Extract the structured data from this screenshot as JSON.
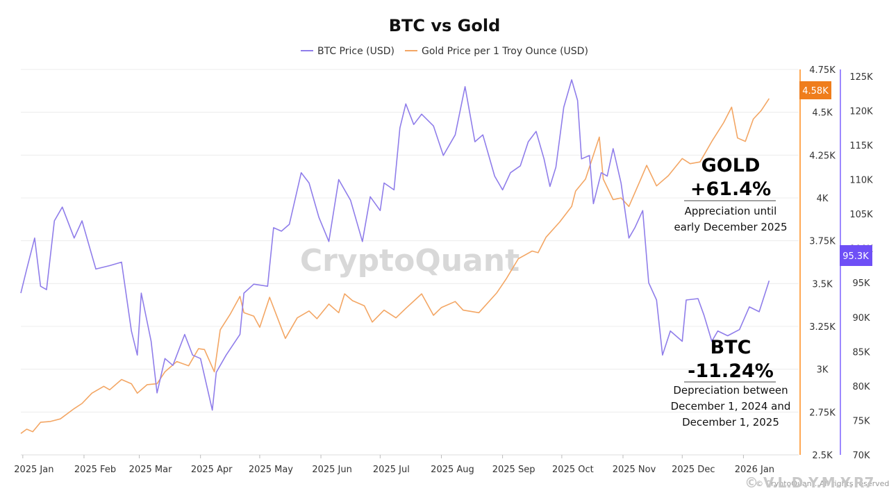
{
  "chart_data": {
    "type": "line",
    "title": "BTC vs Gold",
    "legend": {
      "position": "top-center",
      "entries": [
        "BTC Price (USD)",
        "Gold Price per 1 Troy Ounce (USD)"
      ]
    },
    "grid": true,
    "x_ticks": [
      "2025 Jan",
      "2025 Feb",
      "2025 Mar",
      "2025 Apr",
      "2025 May",
      "2025 Jun",
      "2025 Jul",
      "2025 Aug",
      "2025 Sep",
      "2025 Oct",
      "2025 Nov",
      "2025 Dec",
      "2026 Jan"
    ],
    "x_range": [
      "2024-12-31",
      "2026-01-29"
    ],
    "gold_axis": {
      "ticks": [
        "2.5K",
        "2.75K",
        "3K",
        "3.25K",
        "3.5K",
        "3.75K",
        "4K",
        "4.25K",
        "4.5K",
        "4.75K"
      ],
      "range": [
        2500,
        4750
      ],
      "last_value_label": "4.58K",
      "color": "#ff8c1a"
    },
    "btc_axis": {
      "ticks": [
        "70K",
        "75K",
        "80K",
        "85K",
        "90K",
        "95K",
        "100K",
        "105K",
        "110K",
        "115K",
        "120K",
        "125K"
      ],
      "range": [
        70000,
        126000
      ],
      "last_value_label": "95.3K",
      "color": "#7b61ff"
    },
    "series": [
      {
        "name": "BTC Price (USD)",
        "axis": "btc",
        "color": "#8f7dea",
        "points": [
          [
            "2024-12-31",
            93500
          ],
          [
            "2025-01-03",
            97000
          ],
          [
            "2025-01-07",
            101500
          ],
          [
            "2025-01-10",
            94500
          ],
          [
            "2025-01-13",
            94000
          ],
          [
            "2025-01-17",
            104000
          ],
          [
            "2025-01-21",
            106000
          ],
          [
            "2025-01-27",
            101500
          ],
          [
            "2025-01-31",
            104000
          ],
          [
            "2025-02-03",
            101000
          ],
          [
            "2025-02-07",
            97000
          ],
          [
            "2025-02-14",
            97500
          ],
          [
            "2025-02-20",
            98000
          ],
          [
            "2025-02-25",
            88000
          ],
          [
            "2025-02-28",
            84500
          ],
          [
            "2025-03-02",
            93500
          ],
          [
            "2025-03-07",
            86500
          ],
          [
            "2025-03-10",
            79000
          ],
          [
            "2025-03-14",
            84000
          ],
          [
            "2025-03-18",
            83000
          ],
          [
            "2025-03-24",
            87500
          ],
          [
            "2025-03-28",
            84500
          ],
          [
            "2025-04-01",
            84000
          ],
          [
            "2025-04-07",
            76500
          ],
          [
            "2025-04-09",
            82000
          ],
          [
            "2025-04-14",
            84500
          ],
          [
            "2025-04-21",
            87500
          ],
          [
            "2025-04-23",
            93500
          ],
          [
            "2025-04-28",
            94800
          ],
          [
            "2025-05-05",
            94500
          ],
          [
            "2025-05-08",
            103000
          ],
          [
            "2025-05-12",
            102500
          ],
          [
            "2025-05-16",
            103500
          ],
          [
            "2025-05-22",
            111000
          ],
          [
            "2025-05-26",
            109500
          ],
          [
            "2025-05-31",
            104500
          ],
          [
            "2025-06-05",
            101000
          ],
          [
            "2025-06-10",
            110000
          ],
          [
            "2025-06-16",
            107000
          ],
          [
            "2025-06-22",
            101000
          ],
          [
            "2025-06-26",
            107500
          ],
          [
            "2025-07-01",
            105500
          ],
          [
            "2025-07-03",
            109500
          ],
          [
            "2025-07-08",
            108500
          ],
          [
            "2025-07-11",
            117500
          ],
          [
            "2025-07-14",
            121000
          ],
          [
            "2025-07-18",
            118000
          ],
          [
            "2025-07-22",
            119500
          ],
          [
            "2025-07-28",
            117800
          ],
          [
            "2025-08-02",
            113500
          ],
          [
            "2025-08-08",
            116500
          ],
          [
            "2025-08-13",
            123500
          ],
          [
            "2025-08-18",
            115500
          ],
          [
            "2025-08-22",
            116500
          ],
          [
            "2025-08-28",
            110500
          ],
          [
            "2025-09-01",
            108500
          ],
          [
            "2025-09-05",
            111000
          ],
          [
            "2025-09-10",
            112000
          ],
          [
            "2025-09-14",
            115500
          ],
          [
            "2025-09-18",
            117000
          ],
          [
            "2025-09-22",
            113000
          ],
          [
            "2025-09-25",
            109000
          ],
          [
            "2025-09-28",
            111800
          ],
          [
            "2025-10-02",
            120500
          ],
          [
            "2025-10-06",
            124500
          ],
          [
            "2025-10-09",
            121500
          ],
          [
            "2025-10-11",
            113000
          ],
          [
            "2025-10-15",
            113500
          ],
          [
            "2025-10-17",
            106500
          ],
          [
            "2025-10-21",
            111000
          ],
          [
            "2025-10-24",
            110500
          ],
          [
            "2025-10-27",
            114500
          ],
          [
            "2025-10-31",
            109500
          ],
          [
            "2025-11-04",
            101500
          ],
          [
            "2025-11-07",
            103000
          ],
          [
            "2025-11-11",
            105500
          ],
          [
            "2025-11-14",
            95000
          ],
          [
            "2025-11-18",
            92500
          ],
          [
            "2025-11-21",
            84500
          ],
          [
            "2025-11-25",
            88000
          ],
          [
            "2025-12-01",
            86500
          ],
          [
            "2025-12-03",
            92500
          ],
          [
            "2025-12-09",
            92700
          ],
          [
            "2025-12-12",
            90300
          ],
          [
            "2025-12-16",
            86500
          ],
          [
            "2025-12-19",
            88000
          ],
          [
            "2025-12-24",
            87300
          ],
          [
            "2025-12-30",
            88200
          ],
          [
            "2026-01-04",
            91500
          ],
          [
            "2026-01-09",
            90800
          ],
          [
            "2026-01-14",
            95300
          ]
        ]
      },
      {
        "name": "Gold Price per 1 Troy Ounce (USD)",
        "axis": "gold",
        "color": "#f3a664",
        "points": [
          [
            "2024-12-31",
            2625
          ],
          [
            "2025-01-03",
            2650
          ],
          [
            "2025-01-06",
            2635
          ],
          [
            "2025-01-10",
            2690
          ],
          [
            "2025-01-15",
            2695
          ],
          [
            "2025-01-20",
            2710
          ],
          [
            "2025-01-27",
            2770
          ],
          [
            "2025-01-31",
            2800
          ],
          [
            "2025-02-05",
            2860
          ],
          [
            "2025-02-11",
            2900
          ],
          [
            "2025-02-14",
            2880
          ],
          [
            "2025-02-20",
            2940
          ],
          [
            "2025-02-25",
            2915
          ],
          [
            "2025-02-28",
            2860
          ],
          [
            "2025-03-05",
            2910
          ],
          [
            "2025-03-10",
            2915
          ],
          [
            "2025-03-14",
            2985
          ],
          [
            "2025-03-20",
            3045
          ],
          [
            "2025-03-26",
            3020
          ],
          [
            "2025-03-31",
            3120
          ],
          [
            "2025-04-03",
            3115
          ],
          [
            "2025-04-08",
            2985
          ],
          [
            "2025-04-11",
            3230
          ],
          [
            "2025-04-16",
            3320
          ],
          [
            "2025-04-21",
            3425
          ],
          [
            "2025-04-23",
            3330
          ],
          [
            "2025-04-28",
            3310
          ],
          [
            "2025-05-01",
            3245
          ],
          [
            "2025-05-06",
            3420
          ],
          [
            "2025-05-09",
            3330
          ],
          [
            "2025-05-14",
            3180
          ],
          [
            "2025-05-20",
            3300
          ],
          [
            "2025-05-26",
            3340
          ],
          [
            "2025-05-30",
            3295
          ],
          [
            "2025-06-05",
            3380
          ],
          [
            "2025-06-10",
            3330
          ],
          [
            "2025-06-13",
            3440
          ],
          [
            "2025-06-17",
            3400
          ],
          [
            "2025-06-23",
            3370
          ],
          [
            "2025-06-27",
            3275
          ],
          [
            "2025-07-03",
            3345
          ],
          [
            "2025-07-09",
            3300
          ],
          [
            "2025-07-14",
            3355
          ],
          [
            "2025-07-22",
            3440
          ],
          [
            "2025-07-28",
            3315
          ],
          [
            "2025-08-01",
            3360
          ],
          [
            "2025-08-08",
            3395
          ],
          [
            "2025-08-12",
            3345
          ],
          [
            "2025-08-20",
            3330
          ],
          [
            "2025-08-29",
            3445
          ],
          [
            "2025-09-03",
            3530
          ],
          [
            "2025-09-09",
            3645
          ],
          [
            "2025-09-16",
            3690
          ],
          [
            "2025-09-19",
            3680
          ],
          [
            "2025-09-23",
            3770
          ],
          [
            "2025-09-30",
            3860
          ],
          [
            "2025-10-06",
            3950
          ],
          [
            "2025-10-08",
            4040
          ],
          [
            "2025-10-13",
            4110
          ],
          [
            "2025-10-17",
            4250
          ],
          [
            "2025-10-20",
            4355
          ],
          [
            "2025-10-22",
            4110
          ],
          [
            "2025-10-27",
            3990
          ],
          [
            "2025-10-31",
            4000
          ],
          [
            "2025-11-04",
            3950
          ],
          [
            "2025-11-10",
            4110
          ],
          [
            "2025-11-13",
            4190
          ],
          [
            "2025-11-18",
            4070
          ],
          [
            "2025-11-24",
            4130
          ],
          [
            "2025-12-01",
            4230
          ],
          [
            "2025-12-05",
            4200
          ],
          [
            "2025-12-10",
            4210
          ],
          [
            "2025-12-16",
            4330
          ],
          [
            "2025-12-22",
            4440
          ],
          [
            "2025-12-26",
            4530
          ],
          [
            "2025-12-29",
            4350
          ],
          [
            "2026-01-02",
            4330
          ],
          [
            "2026-01-06",
            4460
          ],
          [
            "2026-01-10",
            4510
          ],
          [
            "2026-01-14",
            4580
          ]
        ]
      }
    ],
    "annotations": [
      {
        "big1": "GOLD",
        "big2": "+61.4%",
        "small": [
          "Appreciation until",
          "early December 2025"
        ]
      },
      {
        "big1": "BTC",
        "big2": "-11.24%",
        "small": [
          "Depreciation between",
          "December 1, 2024 and",
          "December 1, 2025"
        ]
      }
    ]
  },
  "watermark": "CryptoQuant",
  "credit": "© CryptoQuant. All rights reserved",
  "author": "© V.L.D.Y.M.Y.R7"
}
